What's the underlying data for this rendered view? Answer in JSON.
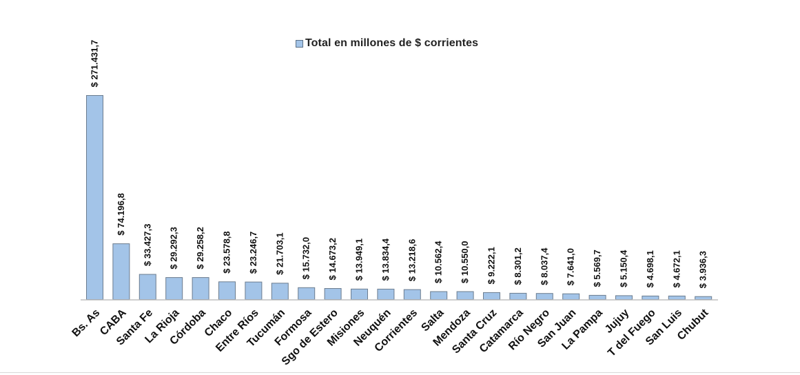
{
  "chart_data": {
    "type": "bar",
    "legend": {
      "label": "Total en millones de $ corrientes",
      "placement": "top-center"
    },
    "categories": [
      "Bs. As",
      "CABA",
      "Santa Fe",
      "La Rioja",
      "Córdoba",
      "Chaco",
      "Entre Ríos",
      "Tucumán",
      "Formosa",
      "Sgo de Estero",
      "Misiones",
      "Neuquén",
      "Corrientes",
      "Salta",
      "Mendoza",
      "Santa  Cruz",
      "Catamarca",
      "Río Negro",
      "San Juan",
      "La Pampa",
      "Jujuy",
      "T del Fuego",
      "San Luis",
      "Chubut"
    ],
    "series": [
      {
        "name": "Total en millones de $ corrientes",
        "values": [
          271431.7,
          74196.8,
          33427.3,
          29292.3,
          29258.2,
          23578.8,
          23246.7,
          21703.1,
          15732.0,
          14673.2,
          13949.1,
          13834.4,
          13218.6,
          10562.4,
          10550.0,
          9222.1,
          8301.2,
          8037.4,
          7641.0,
          5569.7,
          5150.4,
          4698.1,
          4672.1,
          3936.3
        ],
        "labels": [
          "$ 271.431,7",
          "$ 74.196,8",
          "$ 33.427,3",
          "$ 29.292,3",
          "$ 29.258,2",
          "$ 23.578,8",
          "$ 23.246,7",
          "$ 21.703,1",
          "$ 15.732,0",
          "$ 14.673,2",
          "$ 13.949,1",
          "$ 13.834,4",
          "$ 13.218,6",
          "$ 10.562,4",
          "$ 10.550,0",
          "$ 9.222,1",
          "$ 8.301,2",
          "$ 8.037,4",
          "$ 7.641,0",
          "$ 5.569,7",
          "$ 5.150,4",
          "$ 4.698,1",
          "$ 4.672,1",
          "$ 3.936,3"
        ]
      }
    ],
    "ylim": [
      0,
      271431.7
    ],
    "grid": false,
    "colors": {
      "bar_fill": "#a3c4e8",
      "bar_stroke": "#6b7c8e",
      "axis": "#bfbfbf",
      "text": "#111111"
    }
  }
}
